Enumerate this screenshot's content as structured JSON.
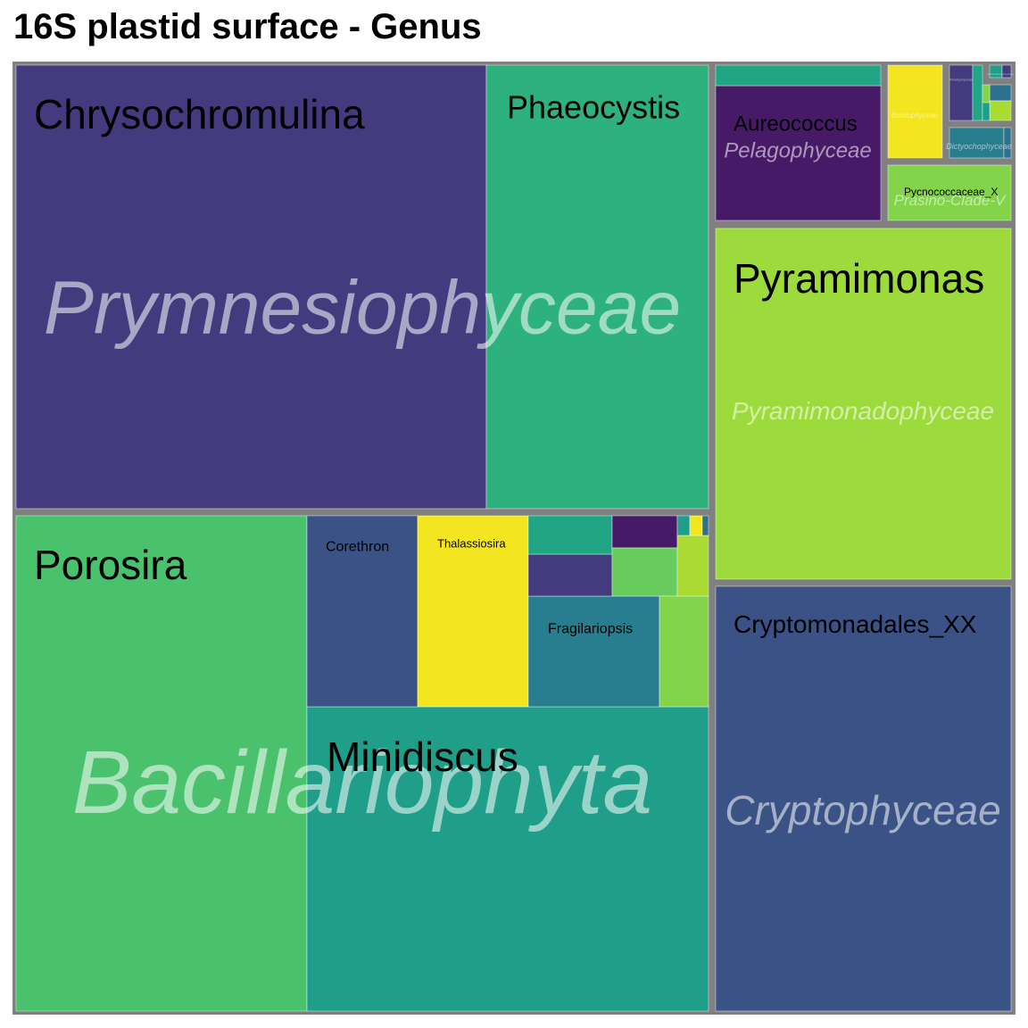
{
  "chart_data": {
    "type": "treemap",
    "title": "16S plastid surface - Genus",
    "value_unit": "relative area (%)",
    "groups": [
      {
        "name": "Prymnesiophyceae",
        "genera": [
          {
            "name": "Chrysochromulina",
            "value": 20.8,
            "color": "#433b7e"
          },
          {
            "name": "Phaeocystis",
            "value": 9.4,
            "color": "#2db27d"
          }
        ]
      },
      {
        "name": "Bacillariophyta",
        "genera": [
          {
            "name": "Porosira",
            "value": 15.2,
            "color": "#4ac16d"
          },
          {
            "name": "Minidiscus",
            "value": 12.2,
            "color": "#1f9e89"
          },
          {
            "name": "Corethron",
            "value": 2.6,
            "color": "#3b5286"
          },
          {
            "name": "Thalassiosira",
            "value": 2.5,
            "color": "#f3e620"
          },
          {
            "name": "Fragilariopsis",
            "value": 1.7,
            "color": "#287d8e"
          },
          {
            "name": "",
            "value": 0.8,
            "color": "#433b7e"
          },
          {
            "name": "",
            "value": 0.7,
            "color": "#21a585"
          },
          {
            "name": "",
            "value": 0.6,
            "color": "#471a68"
          },
          {
            "name": "",
            "value": 0.6,
            "color": "#67cc5c"
          },
          {
            "name": "",
            "value": 0.7,
            "color": "#83d34b"
          },
          {
            "name": "",
            "value": 0.2,
            "color": "#a9db33"
          },
          {
            "name": "",
            "value": 0.1,
            "color": "#1f9e89"
          },
          {
            "name": "",
            "value": 0.1,
            "color": "#f3e620"
          },
          {
            "name": "",
            "value": 0.1,
            "color": "#2c728e"
          }
        ]
      },
      {
        "name": "Pyramimonadophyceae",
        "genera": [
          {
            "name": "Pyramimonas",
            "value": 11.0,
            "color": "#9ddb3d"
          }
        ]
      },
      {
        "name": "Cryptophyceae",
        "genera": [
          {
            "name": "Cryptomonadales_XX",
            "value": 12.6,
            "color": "#3b5286"
          }
        ]
      },
      {
        "name": "Pelagophyceae",
        "genera": [
          {
            "name": "Aureococcus",
            "value": 1.8,
            "color": "#471a68"
          },
          {
            "name": "",
            "value": 0.25,
            "color": "#21a585"
          }
        ]
      },
      {
        "name": "Bolidophyceae",
        "genera": [
          {
            "name": "",
            "value": 0.5,
            "color": "#f3e620"
          }
        ]
      },
      {
        "name": "Prasino-Clade-V",
        "genera": [
          {
            "name": "Pycnococcaceae_X",
            "value": 0.55,
            "color": "#83d34b"
          }
        ]
      },
      {
        "name": "Dictyochophyceae",
        "genera": [
          {
            "name": "",
            "value": 0.25,
            "color": "#287d8e"
          },
          {
            "name": "",
            "value": 0.02,
            "color": "#2c728e"
          }
        ]
      },
      {
        "name": "Rhodophyceae",
        "genera": [
          {
            "name": "",
            "value": 0.08,
            "color": "#433b7e"
          },
          {
            "name": "",
            "value": 0.03,
            "color": "#21a585"
          }
        ]
      },
      {
        "name": "Chlorodendrophyceae",
        "genera": [
          {
            "name": "",
            "value": 0.06,
            "color": "#1f9e89"
          },
          {
            "name": "",
            "value": 0.04,
            "color": "#433b7e"
          }
        ]
      },
      {
        "name": "",
        "genera": [
          {
            "name": "",
            "value": 0.05,
            "color": "#2c728e"
          },
          {
            "name": "",
            "value": 0.05,
            "color": "#a9db33"
          },
          {
            "name": "",
            "value": 0.03,
            "color": "#83d34b"
          },
          {
            "name": "",
            "value": 0.02,
            "color": "#1f9e89"
          }
        ]
      }
    ]
  }
}
